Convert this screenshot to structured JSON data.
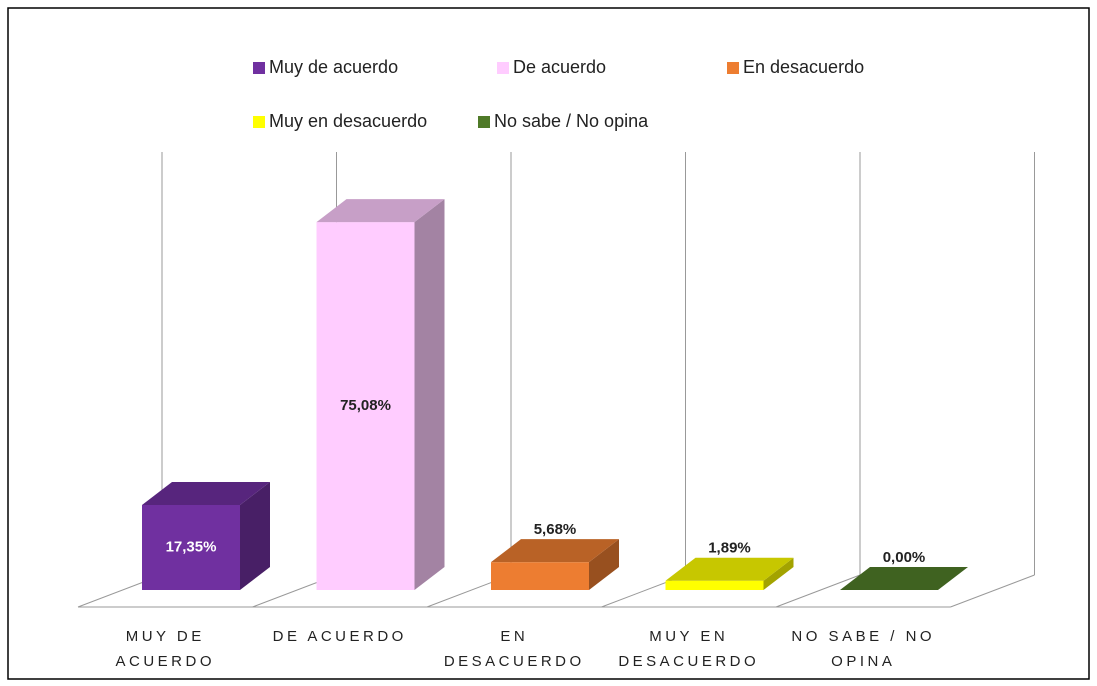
{
  "chart_data": {
    "type": "bar3d",
    "categories": [
      "MUY DE ACUERDO",
      "DE ACUERDO",
      "EN DESACUERDO",
      "MUY EN DESACUERDO",
      "NO SABE / NO OPINA"
    ],
    "series": [
      {
        "name": "Muy de acuerdo",
        "color": "#7030a0",
        "values": [
          17.35,
          null,
          null,
          null,
          null
        ],
        "value_labels": [
          "17,35%",
          null,
          null,
          null,
          null
        ]
      },
      {
        "name": "De acuerdo",
        "color": "#ffccff",
        "values": [
          null,
          75.08,
          null,
          null,
          null
        ],
        "value_labels": [
          null,
          "75,08%",
          null,
          null,
          null
        ]
      },
      {
        "name": "En desacuerdo",
        "color": "#ed7d31",
        "values": [
          null,
          null,
          5.68,
          null,
          null
        ],
        "value_labels": [
          null,
          null,
          "5,68%",
          null,
          null
        ]
      },
      {
        "name": "Muy en desacuerdo",
        "color": "#ffff00",
        "values": [
          null,
          null,
          null,
          1.89,
          null
        ],
        "value_labels": [
          null,
          null,
          null,
          "1,89%",
          null
        ]
      },
      {
        "name": "No sabe / No opina",
        "color": "#4f7a28",
        "values": [
          null,
          null,
          null,
          null,
          0.0
        ],
        "value_labels": [
          null,
          null,
          null,
          null,
          "0,00%"
        ]
      }
    ],
    "ylim": [
      0,
      80
    ],
    "grid": true,
    "legend": "top"
  }
}
